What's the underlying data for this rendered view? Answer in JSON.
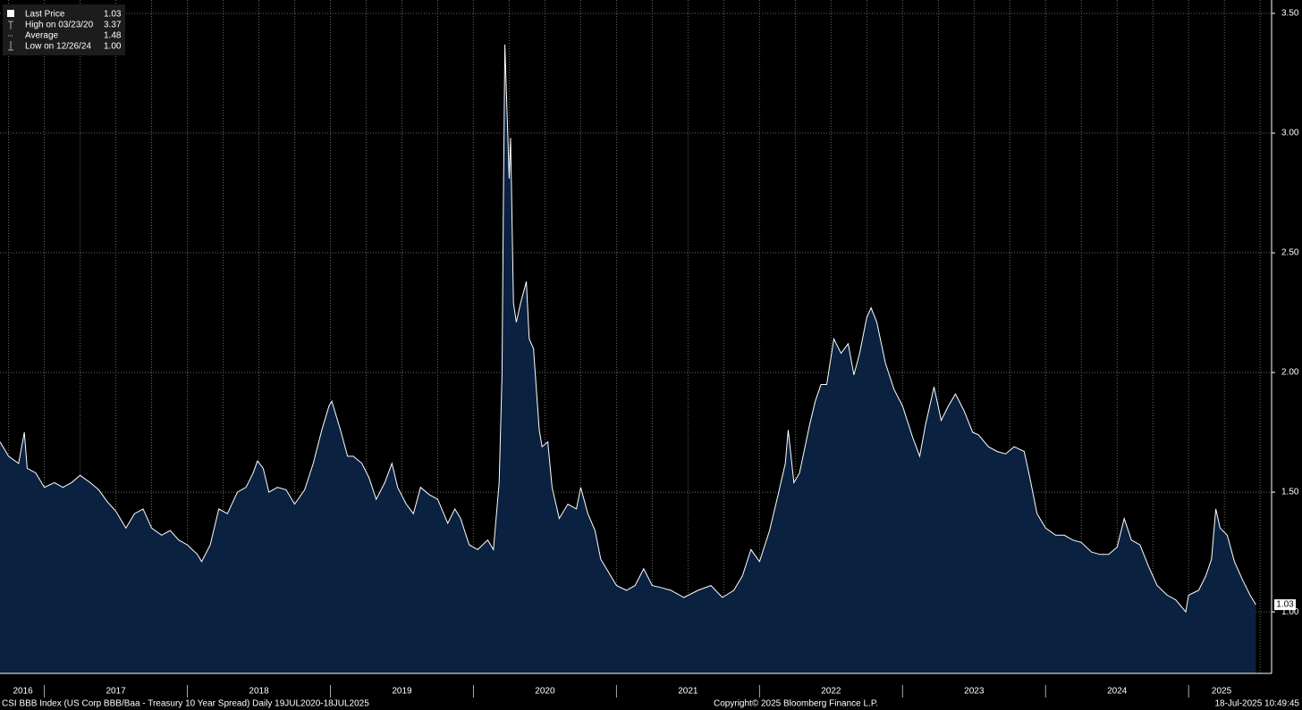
{
  "chart_data": {
    "type": "area",
    "series": [
      {
        "name": "Last Price",
        "color": "#ffffff",
        "fill": "#0a2140",
        "values": [
          1.71,
          1.65,
          1.62,
          1.75,
          1.6,
          1.58,
          1.52,
          1.54,
          1.52,
          1.54,
          1.57,
          1.54,
          1.51,
          1.46,
          1.42,
          1.35,
          1.41,
          1.43,
          1.35,
          1.32,
          1.34,
          1.3,
          1.28,
          1.24,
          1.21,
          1.28,
          1.43,
          1.41,
          1.5,
          1.52,
          1.58,
          1.63,
          1.6,
          1.5,
          1.52,
          1.51,
          1.45,
          1.51,
          1.62,
          1.76,
          1.86,
          1.88,
          1.76,
          1.65,
          1.65,
          1.62,
          1.56,
          1.47,
          1.54,
          1.62,
          1.52,
          1.45,
          1.41,
          1.52,
          1.49,
          1.47,
          1.37,
          1.43,
          1.39,
          1.28,
          1.26,
          1.3,
          1.26,
          1.54,
          1.99,
          2.74,
          3.37,
          2.81,
          2.98,
          2.29,
          2.21,
          2.29,
          2.38,
          2.14,
          2.1,
          1.76,
          1.69,
          1.71,
          1.52,
          1.39,
          1.45,
          1.43,
          1.52,
          1.41,
          1.34,
          1.22,
          1.17,
          1.11,
          1.09,
          1.11,
          1.18,
          1.11,
          1.1,
          1.09,
          1.06,
          1.09,
          1.11,
          1.06,
          1.09,
          1.15,
          1.26,
          1.21,
          1.34,
          1.49,
          1.62,
          1.76,
          1.54,
          1.58,
          1.78,
          1.88,
          1.95,
          1.95,
          2.14,
          2.08,
          2.12,
          1.99,
          2.08,
          2.23,
          2.27,
          2.21,
          2.04,
          1.93,
          1.86,
          1.73,
          1.65,
          1.78,
          1.94,
          1.8,
          1.86,
          1.91,
          1.84,
          1.75,
          1.74,
          1.69,
          1.67,
          1.66,
          1.69,
          1.67,
          1.56,
          1.41,
          1.35,
          1.32,
          1.32,
          1.3,
          1.29,
          1.25,
          1.24,
          1.24,
          1.27,
          1.39,
          1.3,
          1.28,
          1.19,
          1.11,
          1.07,
          1.05,
          1.0,
          1.07,
          1.09,
          1.15,
          1.22,
          1.43,
          1.35,
          1.32,
          1.21,
          1.13,
          1.07,
          1.03
        ]
      }
    ],
    "x": [
      2016.69,
      2016.75,
      2016.82,
      2016.86,
      2016.88,
      2016.94,
      2017.0,
      2017.07,
      2017.13,
      2017.19,
      2017.25,
      2017.32,
      2017.38,
      2017.44,
      2017.5,
      2017.57,
      2017.63,
      2017.69,
      2017.75,
      2017.82,
      2017.88,
      2017.94,
      2018.0,
      2018.07,
      2018.1,
      2018.16,
      2018.22,
      2018.28,
      2018.35,
      2018.41,
      2018.46,
      2018.49,
      2018.53,
      2018.57,
      2018.63,
      2018.69,
      2018.75,
      2018.82,
      2018.88,
      2018.94,
      2018.99,
      2019.01,
      2019.07,
      2019.12,
      2019.16,
      2019.22,
      2019.27,
      2019.32,
      2019.38,
      2019.43,
      2019.47,
      2019.53,
      2019.58,
      2019.63,
      2019.69,
      2019.75,
      2019.82,
      2019.87,
      2019.91,
      2019.97,
      2020.03,
      2020.1,
      2020.14,
      2020.18,
      2020.2,
      2020.21,
      2020.22,
      2020.25,
      2020.26,
      2020.28,
      2020.3,
      2020.33,
      2020.37,
      2020.39,
      2020.42,
      2020.46,
      2020.48,
      2020.52,
      2020.55,
      2020.6,
      2020.66,
      2020.72,
      2020.75,
      2020.8,
      2020.85,
      2020.89,
      2020.94,
      2021.0,
      2021.07,
      2021.13,
      2021.19,
      2021.25,
      2021.32,
      2021.38,
      2021.47,
      2021.57,
      2021.66,
      2021.74,
      2021.82,
      2021.88,
      2021.94,
      2022.0,
      2022.07,
      2022.13,
      2022.18,
      2022.2,
      2022.24,
      2022.28,
      2022.35,
      2022.39,
      2022.43,
      2022.47,
      2022.52,
      2022.57,
      2022.62,
      2022.66,
      2022.7,
      2022.75,
      2022.78,
      2022.82,
      2022.88,
      2022.94,
      2023.0,
      2023.07,
      2023.12,
      2023.16,
      2023.22,
      2023.27,
      2023.32,
      2023.37,
      2023.43,
      2023.49,
      2023.53,
      2023.6,
      2023.66,
      2023.72,
      2023.78,
      2023.85,
      2023.89,
      2023.94,
      2024.0,
      2024.07,
      2024.13,
      2024.19,
      2024.25,
      2024.32,
      2024.38,
      2024.44,
      2024.5,
      2024.55,
      2024.6,
      2024.66,
      2024.72,
      2024.78,
      2024.85,
      2024.91,
      2024.98,
      2025.0,
      2025.07,
      2025.12,
      2025.16,
      2025.19,
      2025.22,
      2025.27,
      2025.32,
      2025.38,
      2025.43,
      2025.47
    ],
    "xlim": [
      2016.69,
      2025.58
    ],
    "xticks": [
      {
        "value": 2016.85,
        "label": "2016"
      },
      {
        "value": 2017.5,
        "label": "2017"
      },
      {
        "value": 2018.5,
        "label": "2018"
      },
      {
        "value": 2019.5,
        "label": "2019"
      },
      {
        "value": 2020.5,
        "label": "2020"
      },
      {
        "value": 2021.5,
        "label": "2021"
      },
      {
        "value": 2022.5,
        "label": "2022"
      },
      {
        "value": 2023.5,
        "label": "2023"
      },
      {
        "value": 2024.5,
        "label": "2024"
      },
      {
        "value": 2025.23,
        "label": "2025"
      }
    ],
    "ylim": [
      0.743,
      3.556
    ],
    "yticks": [
      {
        "value": 1,
        "label": "1.00"
      },
      {
        "value": 1.5,
        "label": "1.50"
      },
      {
        "value": 2,
        "label": "2.00"
      },
      {
        "value": 2.5,
        "label": "2.50"
      },
      {
        "value": 3,
        "label": "3.00"
      },
      {
        "value": 3.5,
        "label": "3.50"
      }
    ],
    "grid": true,
    "legend": {
      "position": "top-left",
      "entries": [
        {
          "label": "Last Price",
          "value": "1.03"
        },
        {
          "label": "High on 03/23/20",
          "value": "3.37"
        },
        {
          "label": "Average",
          "value": "1.48"
        },
        {
          "label": "Low on 12/26/24",
          "value": "1.00"
        }
      ]
    },
    "footer": {
      "source": "CSI BBB Index (US Corp BBB/Baa - Treasury 10 Year Spread)  Daily 19JUL2020-18JUL2025",
      "copyright": "Copyright© 2025 Bloomberg Finance L.P.",
      "timestamp": "18-Jul-2025 10:49:45"
    }
  }
}
